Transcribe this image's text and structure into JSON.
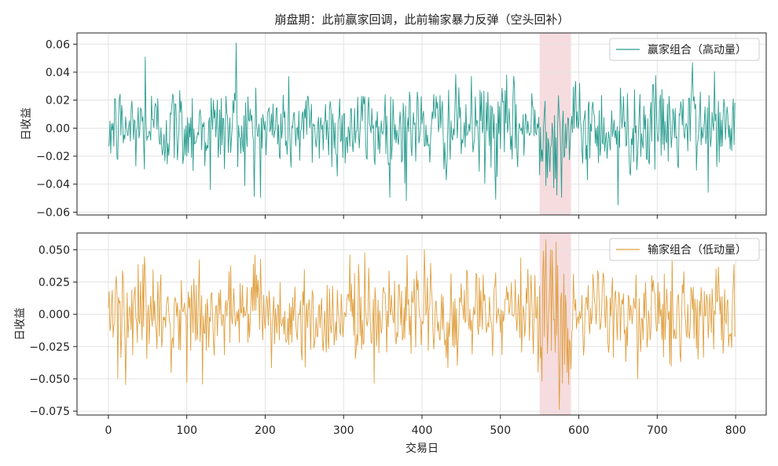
{
  "chart_data": {
    "type": "line",
    "title": "崩盘期：此前赢家回调，此前输家暴力反弹（空头回补）",
    "xlabel": "交易日",
    "x_range": [
      0,
      799
    ],
    "xlim": [
      -40,
      839
    ],
    "x_ticks": [
      "0",
      "100",
      "200",
      "300",
      "400",
      "500",
      "600",
      "700",
      "800"
    ],
    "grid": true,
    "highlight_span": {
      "x_start": 550,
      "x_end": 590,
      "color": "#f5d6d9"
    },
    "panels": [
      {
        "ylabel": "日收益",
        "ylim": [
          -0.062,
          0.068
        ],
        "y_ticks": [
          "0.06",
          "0.04",
          "0.02",
          "0.00",
          "−0.02",
          "−0.04",
          "−0.06"
        ],
        "legend_position": "top-right",
        "series": [
          {
            "name": "赢家组合（高动量）",
            "color": "#2a9d8f",
            "std": 0.016,
            "crash_std": 0.02,
            "key_points": [
              [
                0,
                -0.013
              ],
              [
                47,
                0.051
              ],
              [
                130,
                -0.044
              ],
              [
                163,
                0.061
              ],
              [
                186,
                -0.049
              ],
              [
                380,
                -0.052
              ],
              [
                494,
                -0.051
              ],
              [
                572,
                -0.048
              ],
              [
                650,
                -0.055
              ],
              [
                745,
                0.047
              ]
            ]
          }
        ]
      },
      {
        "ylabel": "日收益",
        "ylim": [
          -0.078,
          0.063
        ],
        "y_ticks": [
          "0.050",
          "0.025",
          "0.000",
          "−0.025",
          "−0.050",
          "−0.075"
        ],
        "legend_position": "top-right",
        "series": [
          {
            "name": "输家组合（低动量）",
            "color": "#e09f3e",
            "std": 0.018,
            "crash_std": 0.033,
            "key_points": [
              [
                0,
                0.005
              ],
              [
                100,
                -0.053
              ],
              [
                185,
                0.039
              ],
              [
                381,
                0.046
              ],
              [
                553,
                -0.052
              ],
              [
                558,
                0.058
              ],
              [
                571,
                0.056
              ],
              [
                575,
                -0.074
              ],
              [
                585,
                -0.045
              ]
            ]
          }
        ]
      }
    ]
  }
}
